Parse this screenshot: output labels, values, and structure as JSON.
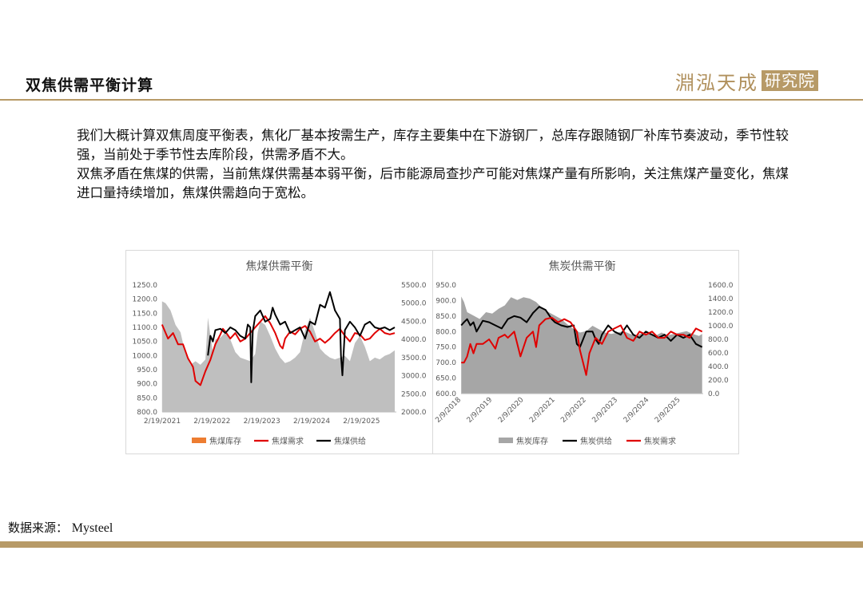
{
  "header": {
    "title": "双焦供需平衡计算",
    "logo_text": "淵泓天成",
    "logo_box_text": "研究院"
  },
  "body": {
    "para1": "我们大概计算双焦周度平衡表，焦化厂基本按需生产，库存主要集中在下游钢厂，总库存跟随钢厂补库节奏波动，季节性较强，当前处于季节性去库阶段，供需矛盾不大。",
    "para2": "双焦矛盾在焦煤的供需，当前焦煤供需基本弱平衡，后市能源局查抄产可能对焦煤产量有所影响，关注焦煤产量变化，焦煤进口量持续增加，焦煤供需趋向于宽松。"
  },
  "footer": {
    "source_label": "数据来源：",
    "source_value": "Mysteel"
  },
  "colors": {
    "accent": "#b79a67",
    "inventory_gray": "#bfbfbf",
    "inventory_orange": "#ed7d31",
    "demand_red": "#e00000",
    "supply_black": "#000000"
  },
  "chart_data": [
    {
      "type": "line",
      "title": "焦煤供需平衡",
      "x_ticks": [
        "2/19/2021",
        "2/19/2022",
        "2/19/2023",
        "2/19/2024",
        "2/19/2025"
      ],
      "x_range": [
        "2021-02-19",
        "2025-10-31"
      ],
      "left_axis": {
        "ticks": [
          "800.0",
          "850.0",
          "900.0",
          "950.0",
          "1000.0",
          "1050.0",
          "1100.0",
          "1150.0",
          "1200.0",
          "1250.0"
        ],
        "ylim": [
          800,
          1250
        ]
      },
      "right_axis": {
        "ticks": [
          "2000.0",
          "2500.0",
          "3000.0",
          "3500.0",
          "4000.0",
          "4500.0",
          "5000.0",
          "5500.0"
        ],
        "ylim": [
          2000,
          5500
        ]
      },
      "grid": false,
      "legend_position": "bottom",
      "series": [
        {
          "name": "焦煤库存",
          "axis": "right",
          "style": "area",
          "legend_color": "#ed7d31",
          "fill_color": "#bfbfbf",
          "x": [
            2021.13,
            2021.2,
            2021.3,
            2021.4,
            2021.5,
            2021.6,
            2021.7,
            2021.8,
            2021.9,
            2022.0,
            2022.05,
            2022.1,
            2022.15,
            2022.2,
            2022.3,
            2022.4,
            2022.5,
            2022.6,
            2022.7,
            2022.8,
            2022.9,
            2023.0,
            2023.05,
            2023.1,
            2023.2,
            2023.3,
            2023.4,
            2023.5,
            2023.6,
            2023.7,
            2023.8,
            2023.9,
            2024.0,
            2024.1,
            2024.2,
            2024.3,
            2024.4,
            2024.5,
            2024.6,
            2024.7,
            2024.8,
            2024.9,
            2025.0,
            2025.1,
            2025.2,
            2025.3,
            2025.4,
            2025.5,
            2025.6,
            2025.7,
            2025.8
          ],
          "values": [
            5050,
            5000,
            4800,
            4400,
            4200,
            3600,
            3300,
            3400,
            3300,
            3450,
            4600,
            4100,
            3650,
            4000,
            4050,
            4200,
            4000,
            3650,
            3500,
            3450,
            3400,
            3600,
            4200,
            4500,
            4400,
            4100,
            3750,
            3500,
            3350,
            3400,
            3500,
            3650,
            4250,
            4600,
            4200,
            3750,
            3600,
            3500,
            3450,
            3500,
            3550,
            3400,
            3900,
            4100,
            3800,
            3400,
            3500,
            3450,
            3550,
            3600,
            3700
          ]
        },
        {
          "name": "焦煤需求",
          "axis": "left",
          "style": "line",
          "color": "#e00000",
          "x": [
            2021.13,
            2021.25,
            2021.35,
            2021.45,
            2021.55,
            2021.65,
            2021.75,
            2021.8,
            2021.9,
            2022.0,
            2022.1,
            2022.2,
            2022.3,
            2022.35,
            2022.4,
            2022.5,
            2022.6,
            2022.7,
            2022.8,
            2022.9,
            2023.0,
            2023.1,
            2023.2,
            2023.3,
            2023.4,
            2023.5,
            2023.55,
            2023.6,
            2023.7,
            2023.8,
            2023.9,
            2024.0,
            2024.1,
            2024.2,
            2024.3,
            2024.4,
            2024.5,
            2024.6,
            2024.7,
            2024.8,
            2024.9,
            2025.0,
            2025.1,
            2025.2,
            2025.3,
            2025.4,
            2025.5,
            2025.6,
            2025.7,
            2025.8
          ],
          "values": [
            1110,
            1060,
            1080,
            1040,
            1040,
            990,
            960,
            910,
            895,
            945,
            985,
            1040,
            1075,
            1095,
            1085,
            1060,
            1080,
            1050,
            1060,
            1080,
            1100,
            1120,
            1140,
            1115,
            1080,
            1035,
            1025,
            1060,
            1085,
            1075,
            1095,
            1105,
            1085,
            1050,
            1060,
            1045,
            1060,
            1080,
            1095,
            1070,
            1050,
            1080,
            1075,
            1055,
            1060,
            1080,
            1095,
            1080,
            1075,
            1080
          ]
        },
        {
          "name": "焦煤供给",
          "axis": "left",
          "style": "line",
          "color": "#000000",
          "x": [
            2022.05,
            2022.1,
            2022.15,
            2022.2,
            2022.3,
            2022.4,
            2022.5,
            2022.6,
            2022.7,
            2022.8,
            2022.85,
            2022.9,
            2022.92,
            2022.95,
            2023.0,
            2023.1,
            2023.2,
            2023.3,
            2023.35,
            2023.4,
            2023.5,
            2023.6,
            2023.7,
            2023.8,
            2023.9,
            2024.0,
            2024.1,
            2024.2,
            2024.3,
            2024.4,
            2024.5,
            2024.6,
            2024.7,
            2024.72,
            2024.75,
            2024.8,
            2024.9,
            2025.0,
            2025.1,
            2025.2,
            2025.3,
            2025.4,
            2025.5,
            2025.6,
            2025.7,
            2025.8
          ],
          "values": [
            1000,
            1070,
            1050,
            1090,
            1095,
            1080,
            1100,
            1090,
            1070,
            1060,
            1110,
            1100,
            905,
            1085,
            1140,
            1160,
            1120,
            1130,
            1170,
            1145,
            1110,
            1120,
            1080,
            1090,
            1100,
            1060,
            1120,
            1110,
            1180,
            1170,
            1225,
            1160,
            1130,
            1000,
            930,
            1090,
            1120,
            1100,
            1070,
            1110,
            1120,
            1100,
            1095,
            1100,
            1090,
            1100
          ]
        }
      ]
    },
    {
      "type": "line",
      "title": "焦炭供需平衡",
      "x_ticks": [
        "2/9/2018",
        "2/9/2019",
        "2/9/2020",
        "2/9/2021",
        "2/9/2022",
        "2/9/2023",
        "2/9/2024",
        "2/9/2025"
      ],
      "x_range": [
        "2018-02-09",
        "2025-10-31"
      ],
      "left_axis": {
        "ticks": [
          "600.0",
          "650.0",
          "700.0",
          "750.0",
          "800.0",
          "850.0",
          "900.0",
          "950.0"
        ],
        "ylim": [
          600,
          950
        ]
      },
      "right_axis": {
        "ticks": [
          "0.0",
          "200.0",
          "400.0",
          "600.0",
          "800.0",
          "1000.0",
          "1200.0",
          "1400.0",
          "1600.0"
        ],
        "ylim": [
          0,
          1600
        ]
      },
      "grid": false,
      "legend_position": "bottom",
      "series": [
        {
          "name": "焦炭库存",
          "axis": "right",
          "style": "area",
          "color": "#a6a6a6",
          "x": [
            2018.11,
            2018.2,
            2018.3,
            2018.5,
            2018.7,
            2018.9,
            2019.1,
            2019.3,
            2019.5,
            2019.7,
            2019.9,
            2020.1,
            2020.3,
            2020.5,
            2020.7,
            2020.9,
            2021.1,
            2021.3,
            2021.5,
            2021.7,
            2021.9,
            2022.1,
            2022.3,
            2022.5,
            2022.7,
            2022.9,
            2023.1,
            2023.3,
            2023.5,
            2023.7,
            2023.9,
            2024.1,
            2024.3,
            2024.5,
            2024.7,
            2024.9,
            2025.1,
            2025.3,
            2025.5,
            2025.7,
            2025.8
          ],
          "values": [
            1430,
            1350,
            1200,
            1150,
            1100,
            1200,
            1180,
            1250,
            1300,
            1420,
            1380,
            1420,
            1400,
            1350,
            1260,
            1200,
            1150,
            1100,
            1020,
            950,
            900,
            920,
            1000,
            950,
            900,
            880,
            900,
            920,
            880,
            850,
            900,
            880,
            850,
            900,
            860,
            880,
            900,
            920,
            880,
            850,
            880
          ]
        },
        {
          "name": "焦炭供给",
          "axis": "left",
          "style": "line",
          "color": "#000000",
          "x": [
            2018.11,
            2018.2,
            2018.3,
            2018.4,
            2018.5,
            2018.6,
            2018.8,
            2019.0,
            2019.2,
            2019.4,
            2019.6,
            2019.8,
            2020.0,
            2020.2,
            2020.4,
            2020.6,
            2020.8,
            2021.0,
            2021.1,
            2021.3,
            2021.5,
            2021.7,
            2021.8,
            2021.9,
            2022.0,
            2022.1,
            2022.3,
            2022.4,
            2022.5,
            2022.6,
            2022.8,
            2023.0,
            2023.2,
            2023.4,
            2023.6,
            2023.8,
            2024.0,
            2024.2,
            2024.4,
            2024.6,
            2024.8,
            2025.0,
            2025.2,
            2025.4,
            2025.6,
            2025.8
          ],
          "values": [
            820,
            830,
            840,
            820,
            830,
            800,
            835,
            830,
            820,
            810,
            840,
            850,
            845,
            830,
            860,
            880,
            870,
            840,
            830,
            820,
            815,
            820,
            760,
            750,
            775,
            800,
            800,
            775,
            760,
            790,
            820,
            800,
            790,
            820,
            790,
            780,
            800,
            790,
            780,
            790,
            770,
            790,
            780,
            790,
            760,
            750
          ]
        },
        {
          "name": "焦炭需求",
          "axis": "left",
          "style": "line",
          "color": "#e00000",
          "x": [
            2018.11,
            2018.2,
            2018.3,
            2018.4,
            2018.5,
            2018.6,
            2018.8,
            2019.0,
            2019.2,
            2019.3,
            2019.5,
            2019.6,
            2019.8,
            2020.0,
            2020.2,
            2020.4,
            2020.5,
            2020.6,
            2020.8,
            2021.0,
            2021.2,
            2021.4,
            2021.6,
            2021.8,
            2021.9,
            2022.0,
            2022.1,
            2022.2,
            2022.4,
            2022.6,
            2022.8,
            2023.0,
            2023.2,
            2023.4,
            2023.6,
            2023.8,
            2024.0,
            2024.2,
            2024.4,
            2024.6,
            2024.8,
            2025.0,
            2025.2,
            2025.4,
            2025.6,
            2025.8
          ],
          "values": [
            700,
            700,
            720,
            760,
            730,
            760,
            760,
            775,
            745,
            780,
            790,
            780,
            800,
            720,
            780,
            800,
            750,
            820,
            840,
            845,
            830,
            840,
            830,
            800,
            740,
            700,
            660,
            730,
            780,
            760,
            800,
            810,
            820,
            780,
            770,
            800,
            790,
            800,
            780,
            780,
            800,
            790,
            790,
            780,
            810,
            800
          ]
        }
      ]
    }
  ]
}
